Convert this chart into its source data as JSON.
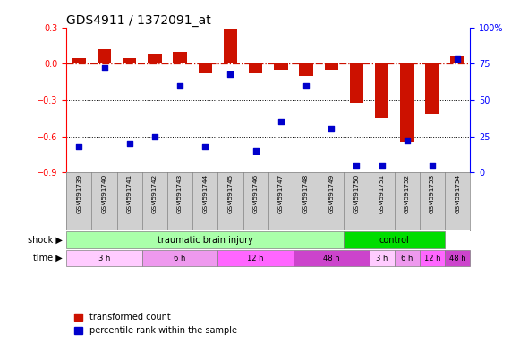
{
  "title": "GDS4911 / 1372091_at",
  "samples": [
    "GSM591739",
    "GSM591740",
    "GSM591741",
    "GSM591742",
    "GSM591743",
    "GSM591744",
    "GSM591745",
    "GSM591746",
    "GSM591747",
    "GSM591748",
    "GSM591749",
    "GSM591750",
    "GSM591751",
    "GSM591752",
    "GSM591753",
    "GSM591754"
  ],
  "red_bars": [
    0.05,
    0.12,
    0.05,
    0.08,
    0.1,
    -0.08,
    0.29,
    -0.08,
    -0.05,
    -0.1,
    -0.05,
    -0.32,
    -0.45,
    -0.65,
    -0.42,
    0.06
  ],
  "blue_dots_pct": [
    18,
    72,
    20,
    25,
    60,
    18,
    68,
    15,
    35,
    60,
    30,
    5,
    5,
    22,
    5,
    78
  ],
  "ylim_left": [
    -0.9,
    0.3
  ],
  "ylim_right": [
    0,
    100
  ],
  "yticks_left": [
    -0.9,
    -0.6,
    -0.3,
    0.0,
    0.3
  ],
  "yticks_right": [
    0,
    25,
    50,
    75,
    100
  ],
  "dotted_lines": [
    -0.3,
    -0.6
  ],
  "shock_groups": [
    {
      "label": "traumatic brain injury",
      "start": 0,
      "end": 11,
      "color": "#aaffaa"
    },
    {
      "label": "control",
      "start": 11,
      "end": 15,
      "color": "#00dd00"
    }
  ],
  "time_groups": [
    {
      "label": "3 h",
      "start": 0,
      "end": 3,
      "color": "#ffccff"
    },
    {
      "label": "6 h",
      "start": 3,
      "end": 6,
      "color": "#ee99ee"
    },
    {
      "label": "12 h",
      "start": 6,
      "end": 9,
      "color": "#ff66ff"
    },
    {
      "label": "48 h",
      "start": 9,
      "end": 12,
      "color": "#cc44cc"
    },
    {
      "label": "3 h",
      "start": 12,
      "end": 13,
      "color": "#ffccff"
    },
    {
      "label": "6 h",
      "start": 13,
      "end": 14,
      "color": "#ee99ee"
    },
    {
      "label": "12 h",
      "start": 14,
      "end": 15,
      "color": "#ff66ff"
    },
    {
      "label": "48 h",
      "start": 15,
      "end": 16,
      "color": "#cc44cc"
    }
  ],
  "bar_color": "#cc1100",
  "dot_color": "#0000cc",
  "bg_color": "#ffffff",
  "legend_red": "transformed count",
  "legend_blue": "percentile rank within the sample",
  "shock_label": "shock",
  "time_label": "time",
  "title_fontsize": 10,
  "axis_fontsize": 7,
  "tick_fontsize": 7
}
